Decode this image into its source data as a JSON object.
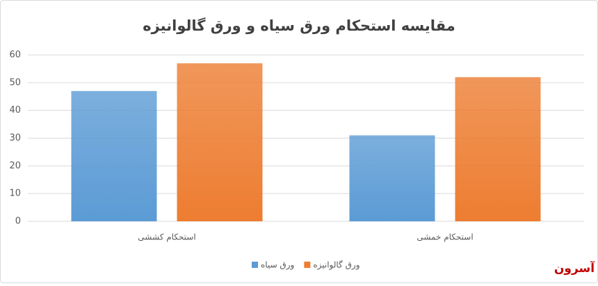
{
  "chart_data": {
    "type": "bar",
    "title": "مقایسه استحکام ورق سیاه و ورق گالوانیزه",
    "categories": [
      "استحکام کششی",
      "استحکام خمشی"
    ],
    "series": [
      {
        "name": "ورق سیاه",
        "color": "#5b9bd5",
        "values": [
          47,
          31
        ]
      },
      {
        "name": "ورق گالوانیزه",
        "color": "#ed7d31",
        "values": [
          57,
          52
        ]
      }
    ],
    "ylim": [
      0,
      60
    ],
    "yticks": [
      0,
      10,
      20,
      30,
      40,
      50,
      60
    ],
    "grid": true,
    "legend": "bottom",
    "watermark": "آسرون"
  }
}
